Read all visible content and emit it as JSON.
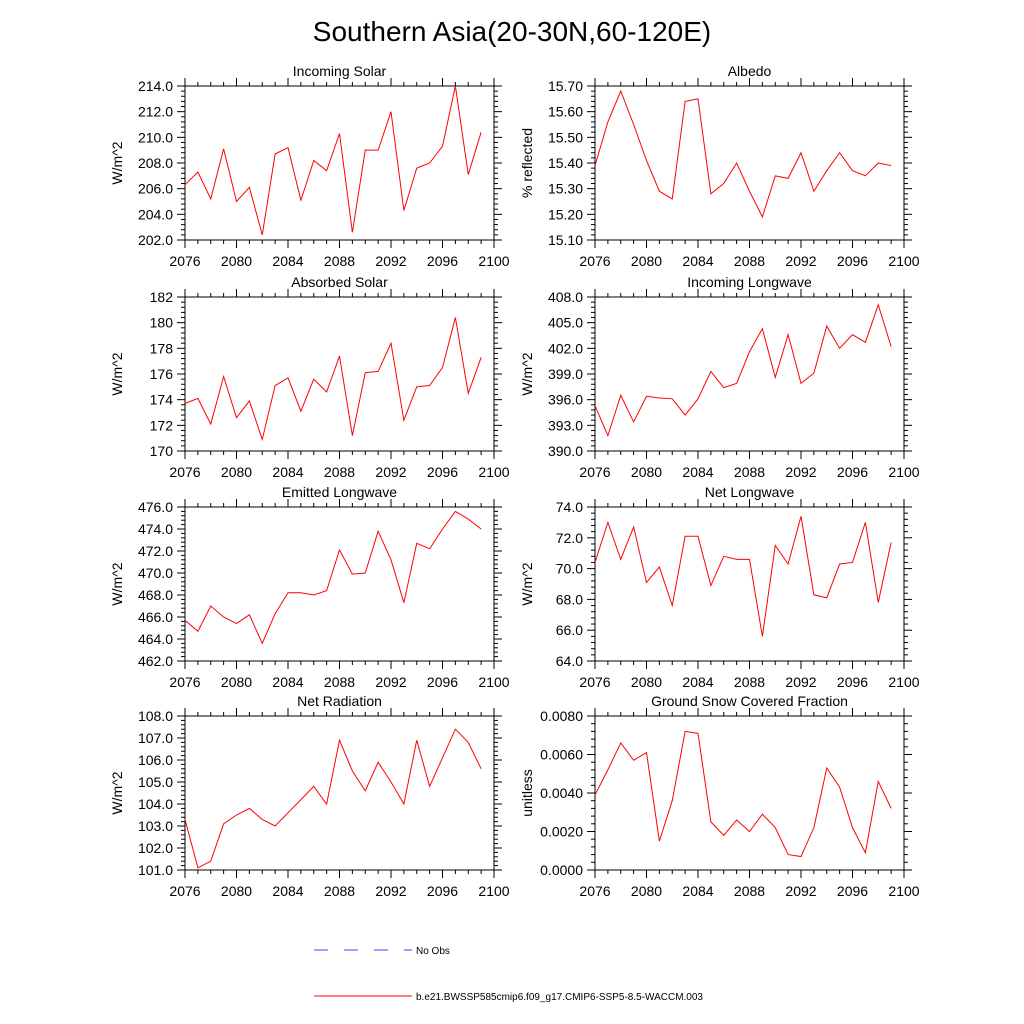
{
  "figure_title": "Southern Asia(20-30N,60-120E)",
  "colors": {
    "model_line": "#ff0000",
    "obs_line": "#3c3cff",
    "axes": "#000000"
  },
  "legend": [
    {
      "label": "No Obs",
      "style": "dashed",
      "color": "#3c3cff"
    },
    {
      "label": "b.e21.BWSSP585cmip6.f09_g17.CMIP6-SSP5-8.5-WACCM.003",
      "style": "solid",
      "color": "#ff0000"
    }
  ],
  "chart_data": [
    {
      "type": "line",
      "title": "Incoming Solar",
      "ylabel": "W/m^2",
      "xlabel": "",
      "xlim": [
        2076,
        2100
      ],
      "ylim": [
        202.0,
        214.0
      ],
      "x_ticks": [
        "2076",
        "2080",
        "2084",
        "2088",
        "2092",
        "2096",
        "2100"
      ],
      "y_ticks": [
        "202.0",
        "204.0",
        "206.0",
        "208.0",
        "210.0",
        "212.0",
        "214.0"
      ],
      "x": [
        2076,
        2077,
        2078,
        2079,
        2080,
        2081,
        2082,
        2083,
        2084,
        2085,
        2086,
        2087,
        2088,
        2089,
        2090,
        2091,
        2092,
        2093,
        2094,
        2095,
        2096,
        2097,
        2098,
        2099
      ],
      "series": [
        {
          "name": "b.e21.BWSSP585cmip6.f09_g17.CMIP6-SSP5-8.5-WACCM.003",
          "values": [
            206.3,
            207.3,
            205.2,
            209.1,
            205.0,
            206.1,
            202.4,
            208.7,
            209.2,
            205.1,
            208.2,
            207.4,
            210.3,
            202.6,
            209.0,
            209.0,
            212.0,
            204.3,
            207.6,
            208.0,
            209.3,
            214.0,
            207.1,
            210.4
          ]
        }
      ]
    },
    {
      "type": "line",
      "title": "Albedo",
      "ylabel": "% reflected",
      "xlabel": "",
      "xlim": [
        2076,
        2100
      ],
      "ylim": [
        15.1,
        15.7
      ],
      "x_ticks": [
        "2076",
        "2080",
        "2084",
        "2088",
        "2092",
        "2096",
        "2100"
      ],
      "y_ticks": [
        "15.10",
        "15.20",
        "15.30",
        "15.40",
        "15.50",
        "15.60",
        "15.70"
      ],
      "x": [
        2076,
        2077,
        2078,
        2079,
        2080,
        2081,
        2082,
        2083,
        2084,
        2085,
        2086,
        2087,
        2088,
        2089,
        2090,
        2091,
        2092,
        2093,
        2094,
        2095,
        2096,
        2097,
        2098,
        2099
      ],
      "series": [
        {
          "name": "b.e21.BWSSP585cmip6.f09_g17.CMIP6-SSP5-8.5-WACCM.003",
          "values": [
            15.39,
            15.56,
            15.68,
            15.55,
            15.41,
            15.29,
            15.26,
            15.64,
            15.65,
            15.28,
            15.32,
            15.4,
            15.29,
            15.19,
            15.35,
            15.34,
            15.44,
            15.29,
            15.37,
            15.44,
            15.37,
            15.35,
            15.4,
            15.39
          ]
        }
      ]
    },
    {
      "type": "line",
      "title": "Absorbed Solar",
      "ylabel": "W/m^2",
      "xlabel": "",
      "xlim": [
        2076,
        2100
      ],
      "ylim": [
        170,
        182
      ],
      "x_ticks": [
        "2076",
        "2080",
        "2084",
        "2088",
        "2092",
        "2096",
        "2100"
      ],
      "y_ticks": [
        "170",
        "172",
        "174",
        "176",
        "178",
        "180",
        "182"
      ],
      "x": [
        2076,
        2077,
        2078,
        2079,
        2080,
        2081,
        2082,
        2083,
        2084,
        2085,
        2086,
        2087,
        2088,
        2089,
        2090,
        2091,
        2092,
        2093,
        2094,
        2095,
        2096,
        2097,
        2098,
        2099
      ],
      "series": [
        {
          "name": "b.e21.BWSSP585cmip6.f09_g17.CMIP6-SSP5-8.5-WACCM.003",
          "values": [
            173.7,
            174.1,
            172.1,
            175.8,
            172.6,
            173.9,
            170.9,
            175.1,
            175.7,
            173.1,
            175.6,
            174.6,
            177.4,
            171.2,
            176.1,
            176.2,
            178.4,
            172.4,
            175.0,
            175.1,
            176.5,
            180.4,
            174.5,
            177.3
          ]
        }
      ]
    },
    {
      "type": "line",
      "title": "Incoming Longwave",
      "ylabel": "W/m^2",
      "xlabel": "",
      "xlim": [
        2076,
        2100
      ],
      "ylim": [
        390.0,
        408.0
      ],
      "x_ticks": [
        "2076",
        "2080",
        "2084",
        "2088",
        "2092",
        "2096",
        "2100"
      ],
      "y_ticks": [
        "390.0",
        "393.0",
        "396.0",
        "399.0",
        "402.0",
        "405.0",
        "408.0"
      ],
      "x": [
        2076,
        2077,
        2078,
        2079,
        2080,
        2081,
        2082,
        2083,
        2084,
        2085,
        2086,
        2087,
        2088,
        2089,
        2090,
        2091,
        2092,
        2093,
        2094,
        2095,
        2096,
        2097,
        2098,
        2099
      ],
      "series": [
        {
          "name": "b.e21.BWSSP585cmip6.f09_g17.CMIP6-SSP5-8.5-WACCM.003",
          "values": [
            395.3,
            391.8,
            396.5,
            393.4,
            396.4,
            396.2,
            396.1,
            394.2,
            396.1,
            399.3,
            397.4,
            397.9,
            401.6,
            404.3,
            398.6,
            403.6,
            397.9,
            399.1,
            404.6,
            402.0,
            403.6,
            402.7,
            407.1,
            402.2
          ]
        }
      ]
    },
    {
      "type": "line",
      "title": "Emitted Longwave",
      "ylabel": "W/m^2",
      "xlabel": "",
      "xlim": [
        2076,
        2100
      ],
      "ylim": [
        462.0,
        476.0
      ],
      "x_ticks": [
        "2076",
        "2080",
        "2084",
        "2088",
        "2092",
        "2096",
        "2100"
      ],
      "y_ticks": [
        "462.0",
        "464.0",
        "466.0",
        "468.0",
        "470.0",
        "472.0",
        "474.0",
        "476.0"
      ],
      "x": [
        2076,
        2077,
        2078,
        2079,
        2080,
        2081,
        2082,
        2083,
        2084,
        2085,
        2086,
        2087,
        2088,
        2089,
        2090,
        2091,
        2092,
        2093,
        2094,
        2095,
        2096,
        2097,
        2098,
        2099
      ],
      "series": [
        {
          "name": "b.e21.BWSSP585cmip6.f09_g17.CMIP6-SSP5-8.5-WACCM.003",
          "values": [
            465.7,
            464.7,
            467.0,
            466.0,
            465.4,
            466.2,
            463.6,
            466.3,
            468.2,
            468.2,
            468.0,
            468.4,
            472.1,
            469.9,
            470.0,
            473.8,
            471.2,
            467.3,
            472.7,
            472.2,
            474.0,
            475.6,
            474.9,
            474.0
          ]
        }
      ]
    },
    {
      "type": "line",
      "title": "Net Longwave",
      "ylabel": "W/m^2",
      "xlabel": "",
      "xlim": [
        2076,
        2100
      ],
      "ylim": [
        64.0,
        74.0
      ],
      "x_ticks": [
        "2076",
        "2080",
        "2084",
        "2088",
        "2092",
        "2096",
        "2100"
      ],
      "y_ticks": [
        "64.0",
        "66.0",
        "68.0",
        "70.0",
        "72.0",
        "74.0"
      ],
      "x": [
        2076,
        2077,
        2078,
        2079,
        2080,
        2081,
        2082,
        2083,
        2084,
        2085,
        2086,
        2087,
        2088,
        2089,
        2090,
        2091,
        2092,
        2093,
        2094,
        2095,
        2096,
        2097,
        2098,
        2099
      ],
      "series": [
        {
          "name": "b.e21.BWSSP585cmip6.f09_g17.CMIP6-SSP5-8.5-WACCM.003",
          "values": [
            70.4,
            73.0,
            70.6,
            72.7,
            69.1,
            70.1,
            67.6,
            72.1,
            72.1,
            68.9,
            70.8,
            70.6,
            70.6,
            65.6,
            71.5,
            70.3,
            73.4,
            68.3,
            68.1,
            70.3,
            70.4,
            73.0,
            67.8,
            71.7
          ]
        }
      ]
    },
    {
      "type": "line",
      "title": "Net Radiation",
      "ylabel": "W/m^2",
      "xlabel": "",
      "xlim": [
        2076,
        2100
      ],
      "ylim": [
        101.0,
        108.0
      ],
      "x_ticks": [
        "2076",
        "2080",
        "2084",
        "2088",
        "2092",
        "2096",
        "2100"
      ],
      "y_ticks": [
        "101.0",
        "102.0",
        "103.0",
        "104.0",
        "105.0",
        "106.0",
        "107.0",
        "108.0"
      ],
      "x": [
        2076,
        2077,
        2078,
        2079,
        2080,
        2081,
        2082,
        2083,
        2084,
        2085,
        2086,
        2087,
        2088,
        2089,
        2090,
        2091,
        2092,
        2093,
        2094,
        2095,
        2096,
        2097,
        2098,
        2099
      ],
      "series": [
        {
          "name": "b.e21.BWSSP585cmip6.f09_g17.CMIP6-SSP5-8.5-WACCM.003",
          "values": [
            103.3,
            101.1,
            101.4,
            103.1,
            103.5,
            103.8,
            103.3,
            103.0,
            103.6,
            104.2,
            104.8,
            104.0,
            106.9,
            105.5,
            104.6,
            105.9,
            105.0,
            104.0,
            106.9,
            104.8,
            106.1,
            107.4,
            106.8,
            105.6
          ]
        }
      ]
    },
    {
      "type": "line",
      "title": "Ground Snow Covered Fraction",
      "ylabel": "unitless",
      "xlabel": "",
      "xlim": [
        2076,
        2100
      ],
      "ylim": [
        0.0,
        0.008
      ],
      "x_ticks": [
        "2076",
        "2080",
        "2084",
        "2088",
        "2092",
        "2096",
        "2100"
      ],
      "y_ticks": [
        "0.0000",
        "0.0020",
        "0.0040",
        "0.0060",
        "0.0080"
      ],
      "x": [
        2076,
        2077,
        2078,
        2079,
        2080,
        2081,
        2082,
        2083,
        2084,
        2085,
        2086,
        2087,
        2088,
        2089,
        2090,
        2091,
        2092,
        2093,
        2094,
        2095,
        2096,
        2097,
        2098,
        2099
      ],
      "series": [
        {
          "name": "b.e21.BWSSP585cmip6.f09_g17.CMIP6-SSP5-8.5-WACCM.003",
          "values": [
            0.0039,
            0.0052,
            0.0066,
            0.0057,
            0.0061,
            0.0015,
            0.0036,
            0.0072,
            0.0071,
            0.0025,
            0.0018,
            0.0026,
            0.002,
            0.0029,
            0.0022,
            0.0008,
            0.0007,
            0.0022,
            0.0053,
            0.0043,
            0.0022,
            0.0009,
            0.0046,
            0.0032
          ]
        }
      ]
    }
  ]
}
